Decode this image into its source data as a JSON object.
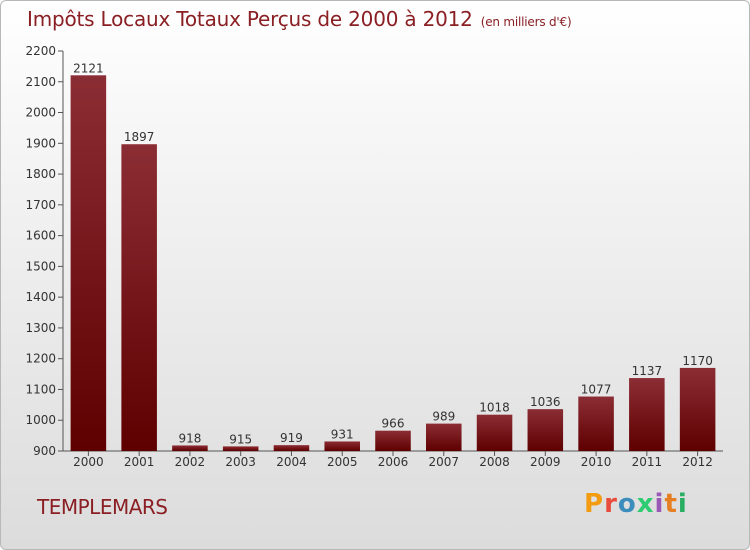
{
  "header": {
    "title": "Impôts Locaux Totaux Perçus de 2000 à 2012",
    "subtitle": "(en milliers d'€)"
  },
  "footer": {
    "commune": "TEMPLEMARS",
    "logo_letters": [
      "P",
      "r",
      "o",
      "x",
      "i",
      "t",
      "i"
    ]
  },
  "colors": {
    "title": "#8a1f24",
    "bar_top": "#8b2d34",
    "bar_bottom": "#5e0000",
    "logo": [
      "#f39c12",
      "#e74c3c",
      "#3c8dbc",
      "#2ecc71",
      "#9b59b6",
      "#e67e22",
      "#27ae60"
    ]
  },
  "chart_data": {
    "type": "bar",
    "title": "Impôts Locaux Totaux Perçus de 2000 à 2012",
    "categories": [
      "2000",
      "2001",
      "2002",
      "2003",
      "2004",
      "2005",
      "2006",
      "2007",
      "2008",
      "2009",
      "2010",
      "2011",
      "2012"
    ],
    "values": [
      2121,
      1897,
      918,
      915,
      919,
      931,
      966,
      989,
      1018,
      1036,
      1077,
      1137,
      1170
    ],
    "ylim": [
      900,
      2200
    ],
    "yticks": [
      900,
      1000,
      1100,
      1200,
      1300,
      1400,
      1500,
      1600,
      1700,
      1800,
      1900,
      2000,
      2100,
      2200
    ],
    "grid": false,
    "xlabel": "",
    "ylabel": ""
  }
}
